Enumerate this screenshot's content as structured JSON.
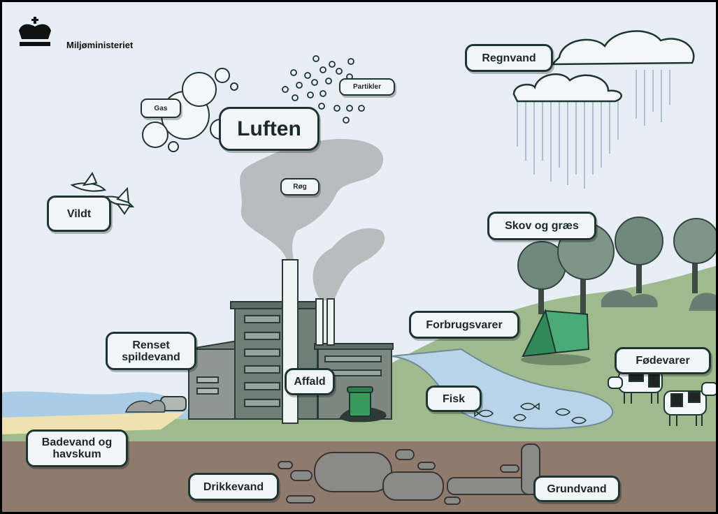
{
  "header": {
    "brand": "Miljøministeriet"
  },
  "labels": [
    {
      "text": "Regnvand"
    },
    {
      "text": "Gas"
    },
    {
      "text": "Partikler"
    },
    {
      "text": "Luften"
    },
    {
      "text": "Røg"
    },
    {
      "text": "Vildt"
    },
    {
      "text": "Skov og græs"
    },
    {
      "text": "Forbrugsvarer"
    },
    {
      "text": "Renset spildevand"
    },
    {
      "text": "Affald"
    },
    {
      "text": "Fisk"
    },
    {
      "text": "Fødevarer"
    },
    {
      "text": "Badevand og havskum"
    },
    {
      "text": "Drikkevand"
    },
    {
      "text": "Grundvand"
    }
  ]
}
